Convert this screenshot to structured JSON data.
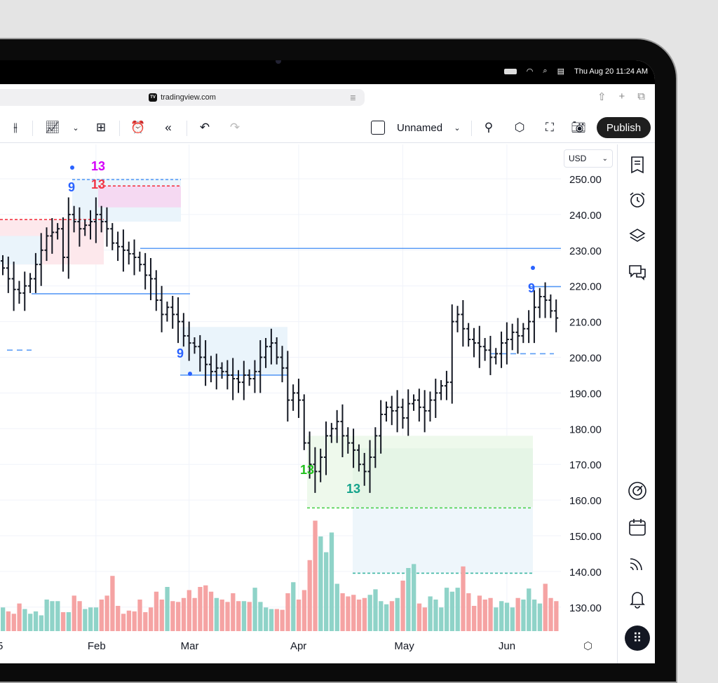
{
  "status_bar": {
    "date": "Thu Aug 20",
    "time": "11:24 AM"
  },
  "browser": {
    "url": "tradingview.com",
    "logo": "TV"
  },
  "toolbar": {
    "layout_name": "Unnamed",
    "publish_label": "Publish"
  },
  "currency": "USD",
  "chart_data": {
    "type": "ohlc",
    "y_ticks": [
      "250.00",
      "240.00",
      "230.00",
      "220.00",
      "210.00",
      "200.00",
      "190.00",
      "180.00",
      "170.00",
      "160.00",
      "150.00",
      "140.00",
      "130.00"
    ],
    "ylim": [
      127,
      254
    ],
    "x_ticks": [
      {
        "label": "5",
        "bar": 0
      },
      {
        "label": "Feb",
        "bar": 17
      },
      {
        "label": "Mar",
        "bar": 34
      },
      {
        "label": "Apr",
        "bar": 54
      },
      {
        "label": "May",
        "bar": 73
      },
      {
        "label": "Jun",
        "bar": 92
      }
    ],
    "closes": [
      225,
      222,
      219,
      218,
      220,
      222,
      226,
      230,
      234,
      235,
      236,
      228,
      240,
      238,
      236,
      237,
      238,
      240,
      238,
      236,
      232,
      231,
      230,
      229,
      228,
      226,
      223,
      222,
      216,
      212,
      214,
      212,
      210,
      206,
      204,
      203,
      200,
      198,
      196,
      197,
      196,
      195,
      194,
      193,
      195,
      194,
      196,
      200,
      203,
      204,
      200,
      197,
      188,
      190,
      188,
      176,
      170,
      168,
      172,
      178,
      180,
      182,
      178,
      176,
      174,
      170,
      168,
      172,
      178,
      184,
      186,
      185,
      186,
      183,
      187,
      188,
      186,
      185,
      188,
      190,
      192,
      193,
      210,
      212,
      208,
      205,
      204,
      203,
      202,
      200,
      201,
      204,
      205,
      207,
      206,
      208,
      210,
      214,
      217,
      216,
      213,
      211
    ],
    "volumes": [
      30,
      25,
      22,
      35,
      28,
      22,
      25,
      20,
      40,
      38,
      38,
      24,
      24,
      45,
      38,
      28,
      30,
      30,
      40,
      45,
      70,
      32,
      22,
      26,
      25,
      40,
      24,
      30,
      50,
      40,
      56,
      38,
      37,
      42,
      52,
      42,
      56,
      58,
      50,
      42,
      40,
      37,
      48,
      38,
      38,
      37,
      55,
      37,
      30,
      28,
      28,
      27,
      48,
      62,
      40,
      52,
      90,
      140,
      120,
      100,
      125,
      60,
      48,
      44,
      46,
      40,
      42,
      46,
      53,
      38,
      34,
      38,
      42,
      64,
      80,
      85,
      35,
      30,
      44,
      40,
      30,
      55,
      50,
      55,
      82,
      48,
      32,
      45,
      40,
      42,
      30,
      38,
      36,
      30,
      42,
      40,
      54,
      40,
      35,
      60,
      42,
      38
    ],
    "levels": [
      230.5,
      217.8,
      195,
      219.8,
      201,
      202
    ],
    "annotations": [
      {
        "text": "13",
        "color": "#d500f9"
      },
      {
        "text": "9",
        "color": "#2962ff"
      },
      {
        "text": "13",
        "color": "#f23645"
      },
      {
        "text": "9",
        "color": "#2962ff"
      },
      {
        "text": "13",
        "color": "#22c11d"
      },
      {
        "text": "13",
        "color": "#14a38b"
      },
      {
        "text": "9",
        "color": "#2962ff"
      }
    ],
    "colors": {
      "up": "#8fd3c8",
      "down": "#f5a3a3",
      "bar": "#131722",
      "level": "#5b9cf6"
    }
  }
}
